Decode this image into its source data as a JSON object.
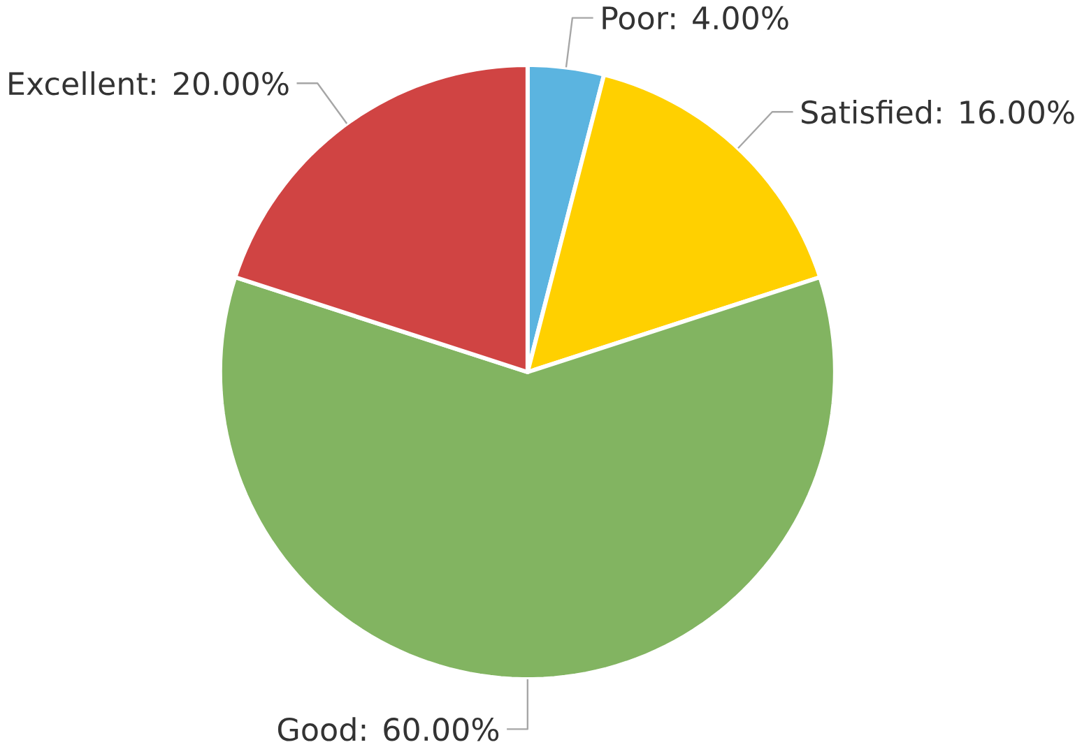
{
  "chart_data": {
    "type": "pie",
    "categories": [
      "Poor: 4.00%",
      "Satisfied: 16.00%",
      "Good: 60.00%",
      "Excellent: 20.00%"
    ],
    "values": [
      4,
      16,
      60,
      20
    ],
    "colors": [
      "#5bb4e0",
      "#ffd000",
      "#82b461",
      "#d04443"
    ]
  }
}
